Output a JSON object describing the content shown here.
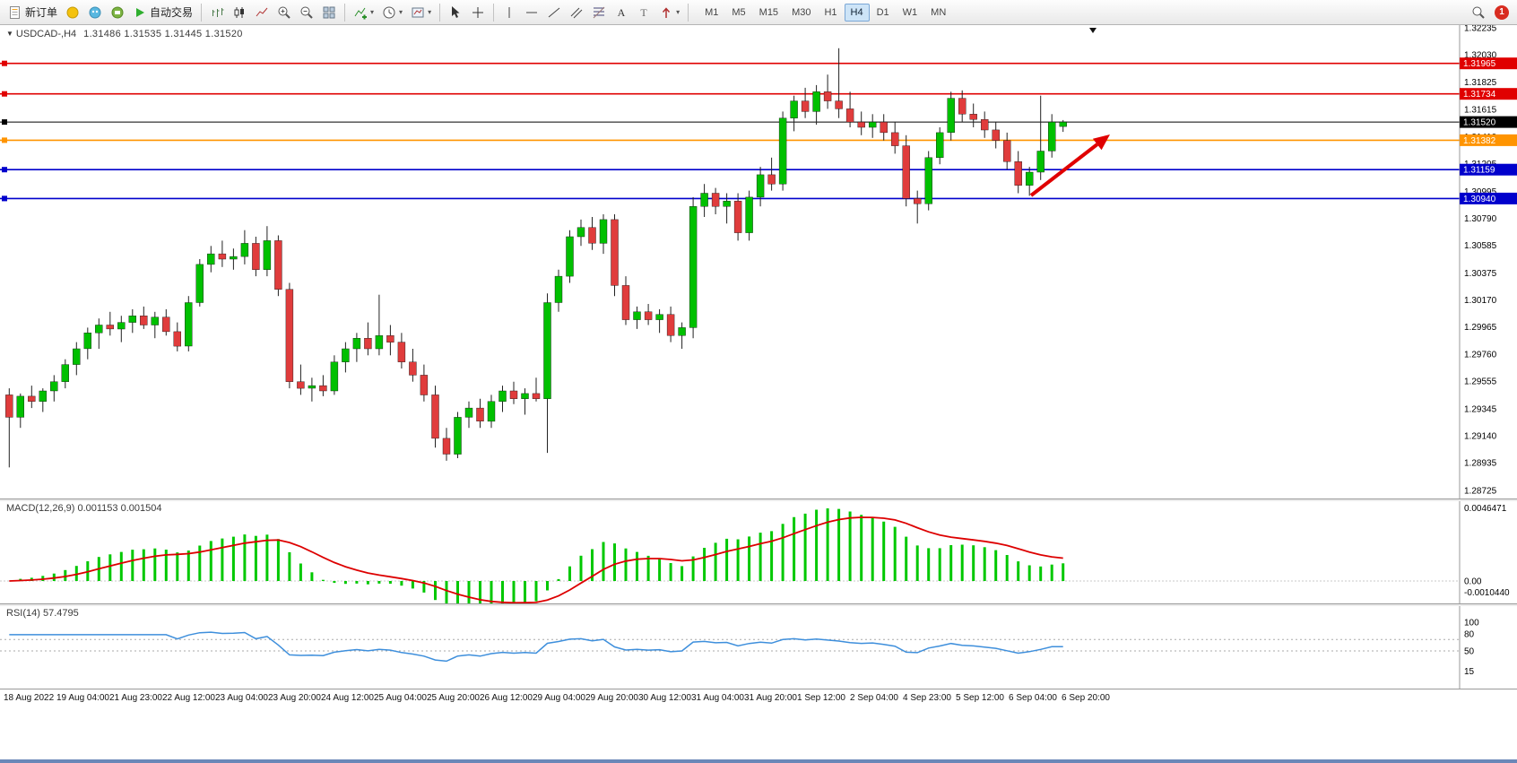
{
  "toolbar": {
    "new_order": "新订单",
    "autotrading": "自动交易",
    "timeframes": [
      "M1",
      "M5",
      "M15",
      "M30",
      "H1",
      "H4",
      "D1",
      "W1",
      "MN"
    ],
    "active_timeframe": "H4",
    "notification_badge": "1"
  },
  "chart": {
    "symbol": "USDCAD-,H4",
    "ohlc_text": "1.31486 1.31535 1.31445 1.31520",
    "up_color": "#00c000",
    "down_color": "#e03c3c",
    "wick_color": "#222222",
    "arrow_color": "#e00000",
    "price_axis_labels": [
      "1.32235",
      "1.32030",
      "1.31825",
      "1.31615",
      "1.31410",
      "1.31205",
      "1.30995",
      "1.30790",
      "1.30585",
      "1.30375",
      "1.30170",
      "1.29965",
      "1.29760",
      "1.29555",
      "1.29345",
      "1.29140",
      "1.28935",
      "1.28725"
    ],
    "hlines": [
      {
        "price": 1.31965,
        "label": "1.31965",
        "color": "#e00000"
      },
      {
        "price": 1.31734,
        "label": "1.31734",
        "color": "#e00000"
      },
      {
        "price": 1.3152,
        "label": "1.31520",
        "color": "#000000"
      },
      {
        "price": 1.31382,
        "label": "1.31382",
        "color": "#ff9400"
      },
      {
        "price": 1.31159,
        "label": "1.31159",
        "color": "#0000cc"
      },
      {
        "price": 1.3094,
        "label": "1.30940",
        "color": "#0000cc"
      }
    ]
  },
  "macd": {
    "label": "MACD(12,26,9) 0.001153 0.001504",
    "axis_labels": [
      "0.0046471",
      "0.00",
      "-0.0010440"
    ],
    "histogram_color": "#00c800",
    "signal_color": "#dd0000"
  },
  "rsi": {
    "label": "RSI(14) 57.4795",
    "period": 14,
    "levels": [
      70,
      50
    ],
    "axis_labels": [
      "100",
      "80",
      "50",
      "15"
    ],
    "line_color": "#3e8fdc"
  },
  "chart_data": {
    "type": "candlestick",
    "symbol": "USDCAD",
    "timeframe": "H4",
    "ylim": [
      1.28725,
      1.32235
    ],
    "horizontal_levels": [
      1.31965,
      1.31734,
      1.3152,
      1.31382,
      1.31159,
      1.3094
    ],
    "x_labels": [
      "18 Aug 2022",
      "19 Aug 04:00",
      "21 Aug 23:00",
      "22 Aug 12:00",
      "23 Aug 04:00",
      "23 Aug 20:00",
      "24 Aug 12:00",
      "25 Aug 04:00",
      "25 Aug 20:00",
      "26 Aug 12:00",
      "29 Aug 04:00",
      "29 Aug 20:00",
      "30 Aug 12:00",
      "31 Aug 04:00",
      "31 Aug 20:00",
      "1 Sep 12:00",
      "2 Sep 04:00",
      "4 Sep 23:00",
      "5 Sep 12:00",
      "6 Sep 04:00",
      "6 Sep 20:00"
    ],
    "indicators": {
      "macd": {
        "fast": 12,
        "slow": 26,
        "signal": 9,
        "current_macd": 0.001153,
        "current_signal": 0.001504
      },
      "rsi": {
        "period": 14,
        "current": 57.4795
      }
    },
    "ohlc": [
      [
        1.2945,
        1.295,
        1.289,
        1.2928
      ],
      [
        1.2928,
        1.2946,
        1.292,
        1.2944
      ],
      [
        1.2944,
        1.2952,
        1.2935,
        1.294
      ],
      [
        1.294,
        1.295,
        1.2932,
        1.2948
      ],
      [
        1.2948,
        1.296,
        1.294,
        1.2955
      ],
      [
        1.2955,
        1.2972,
        1.295,
        1.2968
      ],
      [
        1.2968,
        1.2985,
        1.296,
        1.298
      ],
      [
        1.298,
        1.2996,
        1.2972,
        1.2992
      ],
      [
        1.2992,
        1.3003,
        1.298,
        1.2998
      ],
      [
        1.2998,
        1.3008,
        1.299,
        1.2995
      ],
      [
        1.2995,
        1.3005,
        1.2985,
        1.3
      ],
      [
        1.3,
        1.301,
        1.2992,
        1.3005
      ],
      [
        1.3005,
        1.3012,
        1.2995,
        1.2998
      ],
      [
        1.2998,
        1.3008,
        1.2988,
        1.3004
      ],
      [
        1.3004,
        1.301,
        1.299,
        1.2993
      ],
      [
        1.2993,
        1.3,
        1.2978,
        1.2982
      ],
      [
        1.2982,
        1.302,
        1.2978,
        1.3015
      ],
      [
        1.3015,
        1.3048,
        1.3012,
        1.3044
      ],
      [
        1.3044,
        1.3058,
        1.3038,
        1.3052
      ],
      [
        1.3052,
        1.3062,
        1.3042,
        1.3048
      ],
      [
        1.3048,
        1.3056,
        1.304,
        1.305
      ],
      [
        1.305,
        1.307,
        1.3044,
        1.306
      ],
      [
        1.306,
        1.3065,
        1.3035,
        1.304
      ],
      [
        1.304,
        1.3073,
        1.3035,
        1.3062
      ],
      [
        1.3062,
        1.3066,
        1.302,
        1.3025
      ],
      [
        1.3025,
        1.303,
        1.295,
        1.2955
      ],
      [
        1.2955,
        1.2968,
        1.2945,
        1.295
      ],
      [
        1.295,
        1.2958,
        1.294,
        1.2952
      ],
      [
        1.2952,
        1.296,
        1.2944,
        1.2948
      ],
      [
        1.2948,
        1.2975,
        1.2945,
        1.297
      ],
      [
        1.297,
        1.2985,
        1.2962,
        1.298
      ],
      [
        1.298,
        1.2992,
        1.297,
        1.2988
      ],
      [
        1.2988,
        1.3,
        1.2975,
        1.298
      ],
      [
        1.298,
        1.3021,
        1.2975,
        1.299
      ],
      [
        1.299,
        1.2998,
        1.2975,
        1.2985
      ],
      [
        1.2985,
        1.2992,
        1.2965,
        1.297
      ],
      [
        1.297,
        1.298,
        1.2955,
        1.296
      ],
      [
        1.296,
        1.2968,
        1.294,
        1.2945
      ],
      [
        1.2945,
        1.2952,
        1.2905,
        1.2912
      ],
      [
        1.2912,
        1.292,
        1.2895,
        1.29
      ],
      [
        1.29,
        1.2932,
        1.2897,
        1.2928
      ],
      [
        1.2928,
        1.294,
        1.292,
        1.2935
      ],
      [
        1.2935,
        1.2942,
        1.292,
        1.2925
      ],
      [
        1.2925,
        1.2945,
        1.292,
        1.294
      ],
      [
        1.294,
        1.2952,
        1.2932,
        1.2948
      ],
      [
        1.2948,
        1.2955,
        1.2938,
        1.2942
      ],
      [
        1.2942,
        1.295,
        1.293,
        1.2946
      ],
      [
        1.2946,
        1.2958,
        1.294,
        1.2942
      ],
      [
        1.2942,
        1.3022,
        1.2901,
        1.3015
      ],
      [
        1.3015,
        1.304,
        1.3008,
        1.3035
      ],
      [
        1.3035,
        1.307,
        1.303,
        1.3065
      ],
      [
        1.3065,
        1.3078,
        1.3058,
        1.3072
      ],
      [
        1.3072,
        1.308,
        1.3055,
        1.306
      ],
      [
        1.306,
        1.3082,
        1.3052,
        1.3078
      ],
      [
        1.3078,
        1.3082,
        1.302,
        1.3028
      ],
      [
        1.3028,
        1.3035,
        1.2998,
        1.3002
      ],
      [
        1.3002,
        1.3012,
        1.2995,
        1.3008
      ],
      [
        1.3008,
        1.3014,
        1.2998,
        1.3002
      ],
      [
        1.3002,
        1.301,
        1.2992,
        1.3006
      ],
      [
        1.3006,
        1.3012,
        1.2985,
        1.299
      ],
      [
        1.299,
        1.3,
        1.298,
        1.2996
      ],
      [
        1.2996,
        1.3095,
        1.2988,
        1.3088
      ],
      [
        1.3088,
        1.3105,
        1.308,
        1.3098
      ],
      [
        1.3098,
        1.3102,
        1.3082,
        1.3088
      ],
      [
        1.3088,
        1.3098,
        1.3075,
        1.3092
      ],
      [
        1.3092,
        1.3098,
        1.3062,
        1.3068
      ],
      [
        1.3068,
        1.31,
        1.3062,
        1.3095
      ],
      [
        1.3095,
        1.3118,
        1.3088,
        1.3112
      ],
      [
        1.3112,
        1.3125,
        1.31,
        1.3105
      ],
      [
        1.3105,
        1.316,
        1.31,
        1.3155
      ],
      [
        1.3155,
        1.3172,
        1.3145,
        1.3168
      ],
      [
        1.3168,
        1.3178,
        1.3155,
        1.316
      ],
      [
        1.316,
        1.318,
        1.315,
        1.3175
      ],
      [
        1.3175,
        1.3188,
        1.3162,
        1.3168
      ],
      [
        1.3168,
        1.3208,
        1.3155,
        1.3162
      ],
      [
        1.3162,
        1.3175,
        1.3148,
        1.3152
      ],
      [
        1.3152,
        1.316,
        1.3142,
        1.3148
      ],
      [
        1.3148,
        1.3158,
        1.314,
        1.3152
      ],
      [
        1.3152,
        1.3158,
        1.3138,
        1.3144
      ],
      [
        1.3144,
        1.3152,
        1.3128,
        1.3134
      ],
      [
        1.3134,
        1.3142,
        1.3088,
        1.3094
      ],
      [
        1.3094,
        1.31,
        1.3075,
        1.309
      ],
      [
        1.309,
        1.313,
        1.3085,
        1.3125
      ],
      [
        1.3125,
        1.3148,
        1.312,
        1.3144
      ],
      [
        1.3144,
        1.3175,
        1.3138,
        1.317
      ],
      [
        1.317,
        1.3176,
        1.3152,
        1.3158
      ],
      [
        1.3158,
        1.3166,
        1.3148,
        1.3154
      ],
      [
        1.3154,
        1.316,
        1.314,
        1.3146
      ],
      [
        1.3146,
        1.3152,
        1.3132,
        1.3138
      ],
      [
        1.3138,
        1.3144,
        1.3116,
        1.3122
      ],
      [
        1.3122,
        1.313,
        1.3098,
        1.3104
      ],
      [
        1.3104,
        1.3118,
        1.3096,
        1.3114
      ],
      [
        1.3114,
        1.3172,
        1.3108,
        1.313
      ],
      [
        1.313,
        1.3158,
        1.3125,
        1.3152
      ],
      [
        1.31486,
        1.31535,
        1.31445,
        1.3152
      ]
    ]
  }
}
